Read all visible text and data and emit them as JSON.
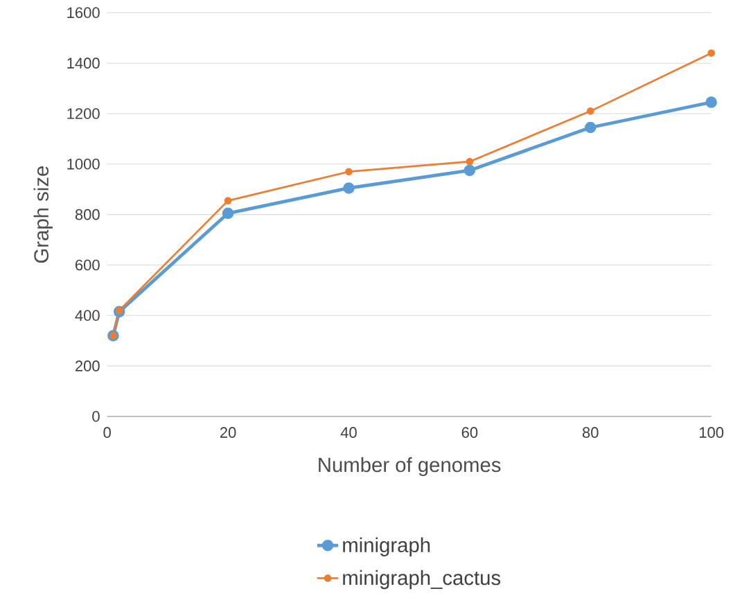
{
  "chart_data": {
    "type": "line",
    "xlabel": "Number of genomes",
    "ylabel": "Graph size",
    "x": [
      1,
      2,
      20,
      40,
      60,
      80,
      100
    ],
    "series": [
      {
        "name": "minigraph",
        "color": "#5b9bd5",
        "values": [
          320,
          415,
          805,
          905,
          975,
          1145,
          1245
        ]
      },
      {
        "name": "minigraph_cactus",
        "color": "#ed7d31",
        "values": [
          320,
          420,
          855,
          970,
          1010,
          1210,
          1440
        ]
      }
    ],
    "xlim": [
      0,
      100
    ],
    "xticks": [
      0,
      20,
      40,
      60,
      80,
      100
    ],
    "ylim": [
      0,
      1600
    ],
    "yticks": [
      0,
      200,
      400,
      600,
      800,
      1000,
      1200,
      1400,
      1600
    ],
    "grid": "y",
    "legend": "bottom",
    "marker": "circle",
    "line_style": "solid"
  }
}
